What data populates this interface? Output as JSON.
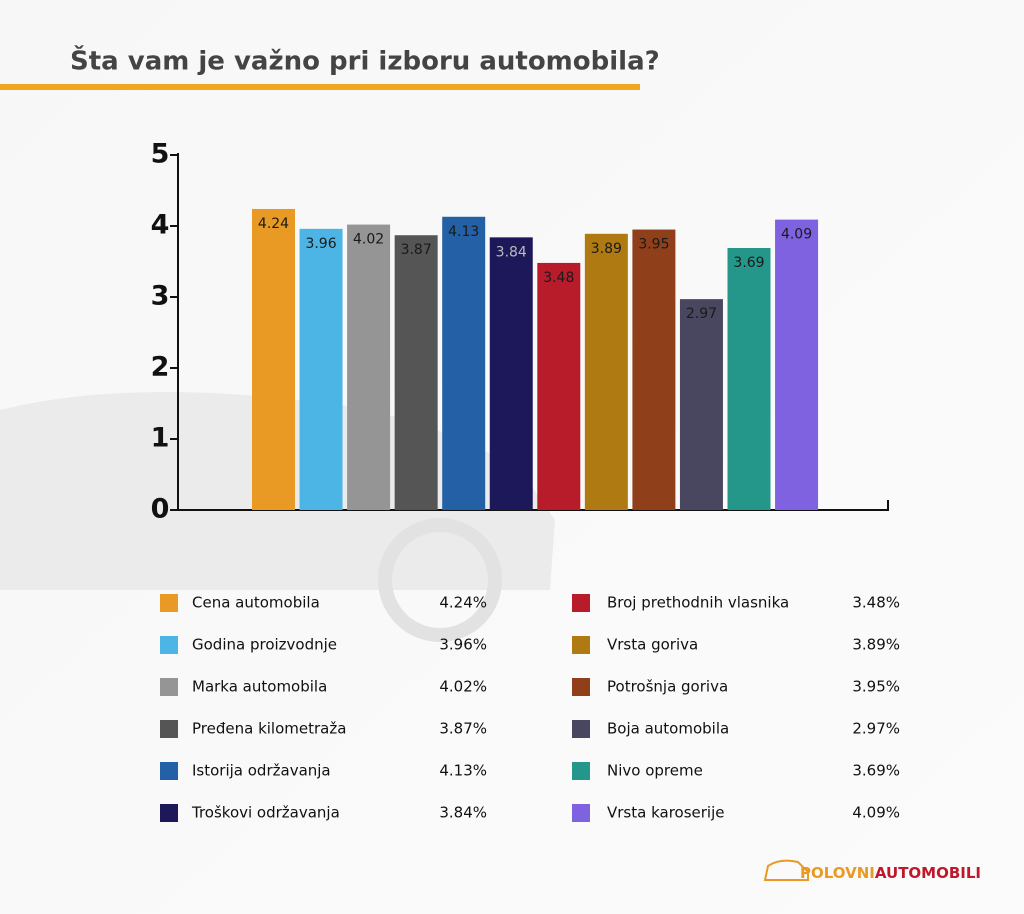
{
  "chart_data": {
    "type": "bar",
    "title": "Šta vam je važno pri izboru automobila?",
    "categories": [
      "Cena automobila",
      "Godina proizvodnje",
      "Marka automobila",
      "Pređena kilometraža",
      "Istorija održavanja",
      "Troškovi održavanja",
      "Broj prethodnih vlasnika",
      "Vrsta goriva",
      "Potrošnja goriva",
      "Boja automobila",
      "Nivo opreme",
      "Vrsta karoserije"
    ],
    "values": [
      4.24,
      3.96,
      4.02,
      3.87,
      4.13,
      3.84,
      3.48,
      3.89,
      3.95,
      2.97,
      3.69,
      4.09
    ],
    "value_labels": [
      "4.24%",
      "3.96%",
      "4.02%",
      "3.87%",
      "4.13%",
      "3.84%",
      "3.48%",
      "3.89%",
      "3.95%",
      "2.97%",
      "3.69%",
      "4.09%"
    ],
    "colors": [
      "#e99a25",
      "#4db5e6",
      "#959595",
      "#555555",
      "#2360a5",
      "#1d1859",
      "#b81c2b",
      "#b07a12",
      "#8f401a",
      "#49475f",
      "#24978a",
      "#7f62e0"
    ],
    "ylim": [
      0,
      5
    ],
    "yticks": [
      0,
      1,
      2,
      3,
      4,
      5
    ],
    "grid": false
  },
  "logo": {
    "first": "POLOVNI",
    "second": "AUTOMOBILI"
  }
}
